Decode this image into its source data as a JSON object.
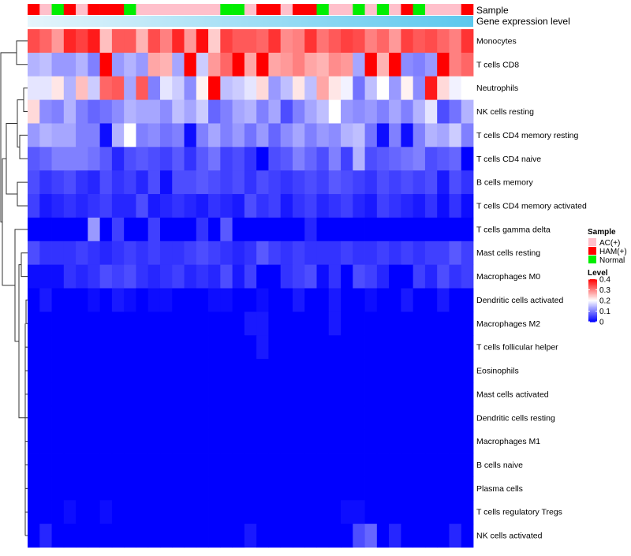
{
  "chart_data": {
    "type": "heatmap",
    "title": "",
    "annotation_tracks": [
      "Sample",
      "Gene expression level"
    ],
    "sample_groups": [
      "HAM(+)",
      "AC(+)",
      "Normal",
      "HAM(+)",
      "AC(+)",
      "HAM(+)",
      "HAM(+)",
      "HAM(+)",
      "Normal",
      "AC(+)",
      "AC(+)",
      "AC(+)",
      "AC(+)",
      "AC(+)",
      "AC(+)",
      "AC(+)",
      "Normal",
      "Normal",
      "AC(+)",
      "HAM(+)",
      "HAM(+)",
      "AC(+)",
      "HAM(+)",
      "HAM(+)",
      "Normal",
      "AC(+)",
      "AC(+)",
      "Normal",
      "AC(+)",
      "Normal",
      "AC(+)",
      "HAM(+)",
      "Normal",
      "AC(+)",
      "AC(+)",
      "AC(+)",
      "HAM(+)"
    ],
    "rows": [
      "Monocytes",
      "T cells CD8",
      "Neutrophils",
      "NK cells resting",
      "T cells CD4 memory resting",
      "T cells CD4 naive",
      "B cells memory",
      "T cells CD4 memory activated",
      "T cells gamma delta",
      "Mast cells resting",
      "Macrophages M0",
      "Dendritic cells activated",
      "Macrophages M2",
      "T cells follicular helper",
      "Eosinophils",
      "Mast cells activated",
      "Dendritic cells resting",
      "Macrophages M1",
      "B cells naive",
      "Plasma cells",
      "T cells regulatory  Tregs",
      "NK cells activated"
    ],
    "values": [
      [
        0.34,
        0.32,
        0.28,
        0.37,
        0.35,
        0.38,
        0.25,
        0.33,
        0.33,
        0.26,
        0.34,
        0.3,
        0.37,
        0.28,
        0.39,
        0.24,
        0.35,
        0.33,
        0.33,
        0.32,
        0.36,
        0.29,
        0.3,
        0.36,
        0.31,
        0.33,
        0.35,
        0.34,
        0.3,
        0.32,
        0.28,
        0.35,
        0.33,
        0.34,
        0.32,
        0.3,
        0.36
      ],
      [
        0.14,
        0.15,
        0.12,
        0.12,
        0.14,
        0.1,
        0.45,
        0.12,
        0.14,
        0.12,
        0.27,
        0.26,
        0.13,
        0.45,
        0.16,
        0.28,
        0.32,
        0.45,
        0.27,
        0.45,
        0.27,
        0.28,
        0.3,
        0.27,
        0.26,
        0.29,
        0.28,
        0.13,
        0.44,
        0.26,
        0.45,
        0.11,
        0.1,
        0.12,
        0.45,
        0.3,
        0.32
      ],
      [
        0.18,
        0.18,
        0.22,
        0.14,
        0.25,
        0.16,
        0.32,
        0.33,
        0.13,
        0.33,
        0.1,
        0.18,
        0.16,
        0.11,
        0.21,
        0.42,
        0.15,
        0.16,
        0.18,
        0.23,
        0.12,
        0.15,
        0.22,
        0.15,
        0.27,
        0.22,
        0.19,
        0.09,
        0.15,
        0.2,
        0.12,
        0.21,
        0.11,
        0.38,
        0.23,
        0.19,
        0.2
      ],
      [
        0.23,
        0.11,
        0.1,
        0.14,
        0.1,
        0.08,
        0.09,
        0.11,
        0.14,
        0.13,
        0.13,
        0.11,
        0.15,
        0.13,
        0.16,
        0.08,
        0.1,
        0.13,
        0.14,
        0.1,
        0.13,
        0.06,
        0.1,
        0.13,
        0.15,
        0.2,
        0.12,
        0.11,
        0.12,
        0.1,
        0.13,
        0.1,
        0.14,
        0.18,
        0.06,
        0.09,
        0.14
      ],
      [
        0.12,
        0.14,
        0.13,
        0.13,
        0.1,
        0.1,
        0.01,
        0.14,
        0.2,
        0.1,
        0.11,
        0.09,
        0.1,
        0.01,
        0.1,
        0.13,
        0.1,
        0.12,
        0.09,
        0.12,
        0.08,
        0.11,
        0.13,
        0.1,
        0.12,
        0.11,
        0.14,
        0.15,
        0.09,
        0.01,
        0.1,
        0.01,
        0.1,
        0.14,
        0.13,
        0.16,
        0.1
      ],
      [
        0.07,
        0.08,
        0.1,
        0.1,
        0.1,
        0.09,
        0.07,
        0.03,
        0.06,
        0.07,
        0.06,
        0.05,
        0.07,
        0.04,
        0.07,
        0.09,
        0.05,
        0.06,
        0.04,
        0.0,
        0.06,
        0.07,
        0.1,
        0.08,
        0.06,
        0.1,
        0.05,
        0.14,
        0.06,
        0.07,
        0.08,
        0.09,
        0.1,
        0.06,
        0.07,
        0.08,
        0.0
      ],
      [
        0.06,
        0.04,
        0.05,
        0.06,
        0.04,
        0.03,
        0.06,
        0.04,
        0.05,
        0.03,
        0.06,
        0.01,
        0.06,
        0.06,
        0.07,
        0.06,
        0.05,
        0.06,
        0.04,
        0.06,
        0.05,
        0.04,
        0.05,
        0.06,
        0.05,
        0.07,
        0.06,
        0.05,
        0.04,
        0.06,
        0.05,
        0.06,
        0.05,
        0.06,
        0.02,
        0.06,
        0.04
      ],
      [
        0.05,
        0.02,
        0.03,
        0.04,
        0.03,
        0.04,
        0.05,
        0.03,
        0.03,
        0.06,
        0.02,
        0.03,
        0.04,
        0.03,
        0.02,
        0.04,
        0.03,
        0.02,
        0.06,
        0.04,
        0.05,
        0.02,
        0.04,
        0.05,
        0.03,
        0.04,
        0.05,
        0.03,
        0.02,
        0.05,
        0.04,
        0.03,
        0.02,
        0.04,
        0.01,
        0.04,
        0.01
      ],
      [
        0.0,
        0.0,
        0.0,
        0.0,
        0.0,
        0.12,
        0.0,
        0.05,
        0.0,
        0.0,
        0.05,
        0.0,
        0.0,
        0.0,
        0.04,
        0.0,
        0.07,
        0.0,
        0.0,
        0.0,
        0.0,
        0.0,
        0.0,
        0.03,
        0.0,
        0.0,
        0.0,
        0.0,
        0.0,
        0.0,
        0.0,
        0.0,
        0.0,
        0.0,
        0.0,
        0.0,
        0.0
      ],
      [
        0.06,
        0.04,
        0.04,
        0.04,
        0.05,
        0.04,
        0.03,
        0.04,
        0.05,
        0.04,
        0.05,
        0.04,
        0.04,
        0.05,
        0.06,
        0.05,
        0.04,
        0.03,
        0.04,
        0.07,
        0.05,
        0.04,
        0.05,
        0.04,
        0.04,
        0.04,
        0.05,
        0.04,
        0.04,
        0.05,
        0.04,
        0.05,
        0.04,
        0.05,
        0.05,
        0.07,
        0.05
      ],
      [
        0.01,
        0.01,
        0.01,
        0.04,
        0.03,
        0.04,
        0.06,
        0.05,
        0.06,
        0.04,
        0.03,
        0.04,
        0.05,
        0.03,
        0.04,
        0.03,
        0.06,
        0.02,
        0.05,
        0.0,
        0.0,
        0.04,
        0.05,
        0.06,
        0.01,
        0.04,
        0.0,
        0.06,
        0.05,
        0.03,
        0.0,
        0.0,
        0.05,
        0.03,
        0.06,
        0.04,
        0.05
      ],
      [
        0.0,
        0.02,
        0.0,
        0.0,
        0.0,
        0.01,
        0.0,
        0.02,
        0.01,
        0.0,
        0.01,
        0.01,
        0.0,
        0.0,
        0.0,
        0.01,
        0.01,
        0.0,
        0.0,
        0.01,
        0.0,
        0.0,
        0.02,
        0.0,
        0.0,
        0.02,
        0.0,
        0.0,
        0.01,
        0.0,
        0.0,
        0.02,
        0.0,
        0.0,
        0.02,
        0.0,
        0.0
      ],
      [
        0.0,
        0.0,
        0.0,
        0.0,
        0.0,
        0.0,
        0.0,
        0.0,
        0.0,
        0.0,
        0.0,
        0.0,
        0.0,
        0.0,
        0.0,
        0.0,
        0.0,
        0.0,
        0.02,
        0.02,
        0.0,
        0.0,
        0.0,
        0.0,
        0.0,
        0.02,
        0.0,
        0.0,
        0.0,
        0.0,
        0.0,
        0.0,
        0.0,
        0.0,
        0.0,
        0.0,
        0.0
      ],
      [
        0.0,
        0.0,
        0.0,
        0.0,
        0.0,
        0.0,
        0.0,
        0.0,
        0.0,
        0.0,
        0.0,
        0.0,
        0.0,
        0.0,
        0.0,
        0.0,
        0.0,
        0.0,
        0.0,
        0.02,
        0.0,
        0.0,
        0.0,
        0.0,
        0.0,
        0.0,
        0.0,
        0.0,
        0.0,
        0.0,
        0.0,
        0.0,
        0.0,
        0.0,
        0.0,
        0.0,
        0.0
      ],
      [
        0.0,
        0.0,
        0.0,
        0.0,
        0.0,
        0.0,
        0.0,
        0.0,
        0.0,
        0.0,
        0.0,
        0.0,
        0.0,
        0.0,
        0.0,
        0.0,
        0.0,
        0.0,
        0.0,
        0.0,
        0.0,
        0.0,
        0.0,
        0.0,
        0.0,
        0.0,
        0.0,
        0.0,
        0.0,
        0.0,
        0.0,
        0.0,
        0.0,
        0.0,
        0.0,
        0.0,
        0.0
      ],
      [
        0.0,
        0.0,
        0.0,
        0.0,
        0.0,
        0.0,
        0.0,
        0.0,
        0.0,
        0.0,
        0.0,
        0.0,
        0.0,
        0.0,
        0.0,
        0.0,
        0.0,
        0.0,
        0.0,
        0.0,
        0.0,
        0.0,
        0.0,
        0.0,
        0.0,
        0.0,
        0.0,
        0.0,
        0.0,
        0.0,
        0.0,
        0.0,
        0.0,
        0.0,
        0.0,
        0.0,
        0.0
      ],
      [
        0.0,
        0.0,
        0.0,
        0.0,
        0.0,
        0.0,
        0.0,
        0.0,
        0.0,
        0.0,
        0.0,
        0.0,
        0.0,
        0.0,
        0.0,
        0.0,
        0.0,
        0.0,
        0.0,
        0.0,
        0.0,
        0.0,
        0.0,
        0.0,
        0.0,
        0.0,
        0.0,
        0.0,
        0.0,
        0.0,
        0.0,
        0.0,
        0.0,
        0.0,
        0.0,
        0.0,
        0.0
      ],
      [
        0.0,
        0.0,
        0.0,
        0.0,
        0.0,
        0.0,
        0.0,
        0.0,
        0.0,
        0.0,
        0.0,
        0.0,
        0.0,
        0.0,
        0.0,
        0.0,
        0.0,
        0.0,
        0.0,
        0.0,
        0.0,
        0.0,
        0.0,
        0.0,
        0.0,
        0.0,
        0.0,
        0.0,
        0.0,
        0.0,
        0.0,
        0.0,
        0.0,
        0.0,
        0.0,
        0.0,
        0.0
      ],
      [
        0.0,
        0.0,
        0.0,
        0.0,
        0.0,
        0.0,
        0.0,
        0.0,
        0.0,
        0.0,
        0.0,
        0.0,
        0.0,
        0.0,
        0.0,
        0.0,
        0.0,
        0.0,
        0.0,
        0.0,
        0.0,
        0.0,
        0.0,
        0.0,
        0.0,
        0.0,
        0.0,
        0.0,
        0.0,
        0.0,
        0.0,
        0.0,
        0.0,
        0.0,
        0.0,
        0.0,
        0.0
      ],
      [
        0.0,
        0.0,
        0.0,
        0.0,
        0.0,
        0.0,
        0.0,
        0.0,
        0.0,
        0.0,
        0.0,
        0.0,
        0.0,
        0.0,
        0.0,
        0.0,
        0.0,
        0.0,
        0.0,
        0.0,
        0.0,
        0.0,
        0.0,
        0.0,
        0.0,
        0.0,
        0.0,
        0.0,
        0.0,
        0.0,
        0.0,
        0.0,
        0.0,
        0.0,
        0.0,
        0.0,
        0.0
      ],
      [
        0.0,
        0.0,
        0.0,
        0.01,
        0.0,
        0.0,
        0.01,
        0.0,
        0.0,
        0.0,
        0.0,
        0.0,
        0.0,
        0.0,
        0.0,
        0.0,
        0.0,
        0.0,
        0.0,
        0.0,
        0.0,
        0.0,
        0.0,
        0.0,
        0.0,
        0.0,
        0.01,
        0.01,
        0.0,
        0.0,
        0.0,
        0.0,
        0.0,
        0.0,
        0.0,
        0.0,
        0.0
      ],
      [
        0.0,
        0.03,
        0.0,
        0.0,
        0.0,
        0.0,
        0.0,
        0.0,
        0.0,
        0.0,
        0.0,
        0.0,
        0.0,
        0.0,
        0.0,
        0.0,
        0.0,
        0.0,
        0.02,
        0.0,
        0.0,
        0.0,
        0.0,
        0.0,
        0.0,
        0.0,
        0.0,
        0.06,
        0.08,
        0.0,
        0.03,
        0.0,
        0.0,
        0.0,
        0.0,
        0.03,
        0.0
      ]
    ],
    "color_scale": {
      "min": 0,
      "mid": 0.2,
      "max": 0.4,
      "colors": [
        "#0000ff",
        "#ffffff",
        "#ff0000"
      ]
    },
    "group_colors": {
      "AC(+)": "#ffc0cb",
      "HAM(+)": "#ff0000",
      "Normal": "#00ee00"
    },
    "expression_bar_colors": [
      "#e6f5fc",
      "#5bc8ee"
    ],
    "legend": {
      "sample_title": "Sample",
      "sample_items": [
        "AC(+)",
        "HAM(+)",
        "Normal"
      ],
      "level_title": "Level",
      "level_ticks": [
        "0.4",
        "0.3",
        "0.2",
        "0.1",
        "0"
      ],
      "placement": "right"
    },
    "row_dendrogram": true
  }
}
